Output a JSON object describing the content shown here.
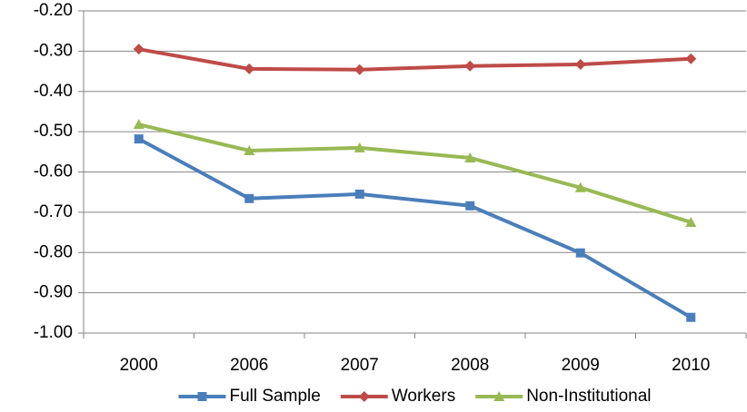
{
  "chart_data": {
    "type": "line",
    "categories": [
      "2000",
      "2006",
      "2007",
      "2008",
      "2009",
      "2010"
    ],
    "series": [
      {
        "name": "Full Sample",
        "color": "#4a7ebb",
        "marker": "square",
        "values": [
          -0.518,
          -0.666,
          -0.655,
          -0.684,
          -0.801,
          -0.961
        ]
      },
      {
        "name": "Workers",
        "color": "#be4b48",
        "marker": "diamond",
        "values": [
          -0.295,
          -0.344,
          -0.346,
          -0.337,
          -0.333,
          -0.319
        ]
      },
      {
        "name": "Non-Institutional",
        "color": "#98b954",
        "marker": "triangle",
        "values": [
          -0.482,
          -0.547,
          -0.54,
          -0.565,
          -0.639,
          -0.725
        ]
      }
    ],
    "ylim": [
      -1.0,
      -0.2
    ],
    "yticks": [
      {
        "value": -1.0,
        "label": "-1.00"
      },
      {
        "value": -0.9,
        "label": "-0.90"
      },
      {
        "value": -0.8,
        "label": "-0.80"
      },
      {
        "value": -0.7,
        "label": "-0.70"
      },
      {
        "value": -0.6,
        "label": "-0.60"
      },
      {
        "value": -0.5,
        "label": "-0.50"
      },
      {
        "value": -0.4,
        "label": "-0.40"
      },
      {
        "value": -0.3,
        "label": "-0.30"
      },
      {
        "value": -0.2,
        "label": "-0.20"
      }
    ],
    "grid": true,
    "legend": "bottom"
  }
}
